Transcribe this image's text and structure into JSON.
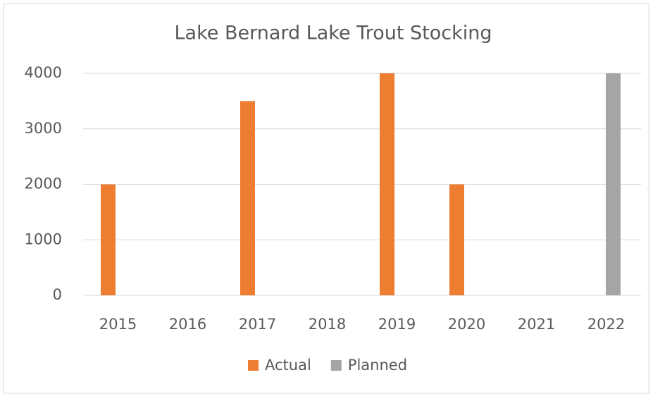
{
  "chart_data": {
    "type": "bar",
    "title": "Lake Bernard Lake Trout Stocking",
    "categories": [
      "2015",
      "2016",
      "2017",
      "2018",
      "2019",
      "2020",
      "2021",
      "2022"
    ],
    "series": [
      {
        "name": "Actual",
        "color": "#ed7d31",
        "values": [
          2000,
          null,
          3500,
          null,
          4000,
          2000,
          null,
          null
        ]
      },
      {
        "name": "Planned",
        "color": "#a5a5a5",
        "values": [
          null,
          null,
          null,
          null,
          null,
          null,
          null,
          4000
        ]
      }
    ],
    "ylim": [
      0,
      4000
    ],
    "yticks": [
      0,
      1000,
      2000,
      3000,
      4000
    ],
    "grid": true,
    "legend": "bottom"
  }
}
